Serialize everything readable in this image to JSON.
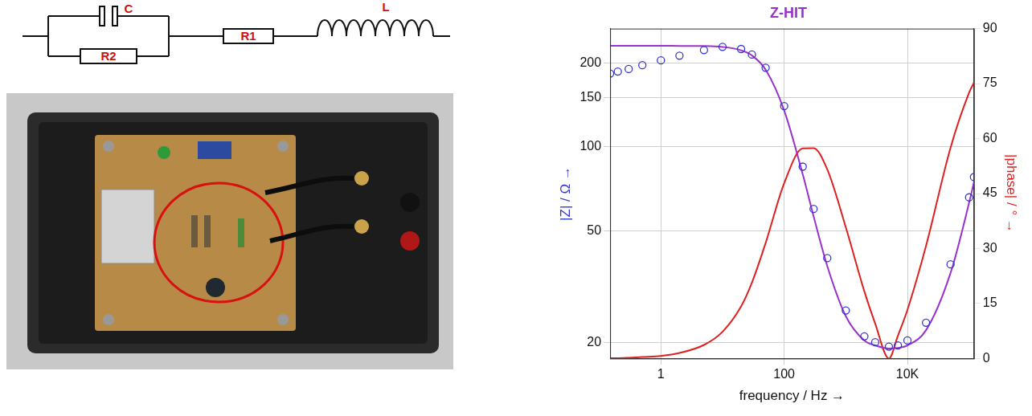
{
  "circuit": {
    "components": [
      {
        "label": "C"
      },
      {
        "label": "R2"
      },
      {
        "label": "R1"
      },
      {
        "label": "L"
      }
    ]
  },
  "chart_data": {
    "type": "line",
    "title": "Z-HIT",
    "x_label": "frequency / Hz →",
    "y_label": "|Z| / Ω →",
    "y2_label": "|phase| / ° →",
    "log": true,
    "grid": true,
    "x": [
      0.15,
      0.2,
      0.3,
      0.5,
      1,
      2,
      5,
      10,
      20,
      30,
      50,
      100,
      200,
      300,
      500,
      1000,
      2000,
      3000,
      5000,
      7000,
      10000,
      20000,
      50000,
      100000,
      120000
    ],
    "xlim": [
      0.15,
      120000
    ],
    "xticks": [
      1,
      100,
      {
        "value": 10000,
        "label": "10K"
      }
    ],
    "ylim": [
      17.5,
      265
    ],
    "yticks": [
      20,
      50,
      100,
      150,
      200
    ],
    "y2lim": [
      0,
      90
    ],
    "y2ticks": [
      0,
      15,
      30,
      45,
      60,
      75,
      90
    ],
    "series": [
      {
        "type": "line",
        "color": "#9932cc",
        "axis": "y",
        "values": [
          230,
          230,
          230,
          230,
          230,
          229.8,
          229.5,
          227.8,
          221.6,
          212.4,
          189,
          135,
          79.8,
          56.5,
          37.5,
          24.8,
          20.3,
          19.5,
          19,
          19.1,
          19.5,
          22.1,
          35.4,
          63.1,
          74.9
        ]
      },
      {
        "type": "scatter",
        "marker": "circle",
        "color": "#3535d0",
        "axis": "y",
        "values": [
          183,
          186,
          190,
          196,
          204,
          212,
          222,
          228,
          224,
          214,
          192,
          140,
          85,
          60,
          40,
          26,
          21,
          20,
          19.3,
          19.5,
          20.3,
          23.5,
          38,
          66,
          78
        ]
      },
      {
        "type": "line",
        "color": "#dd2020",
        "axis": "y2",
        "values": [
          0.1,
          0.1,
          0.2,
          0.4,
          0.7,
          1.5,
          3.7,
          7.3,
          14.2,
          20.7,
          31.5,
          47.8,
          57.3,
          57.4,
          51.6,
          35.8,
          18.3,
          9.5,
          0,
          6.2,
          13.3,
          30.7,
          57.5,
          72.5,
          75.3
        ]
      }
    ]
  }
}
